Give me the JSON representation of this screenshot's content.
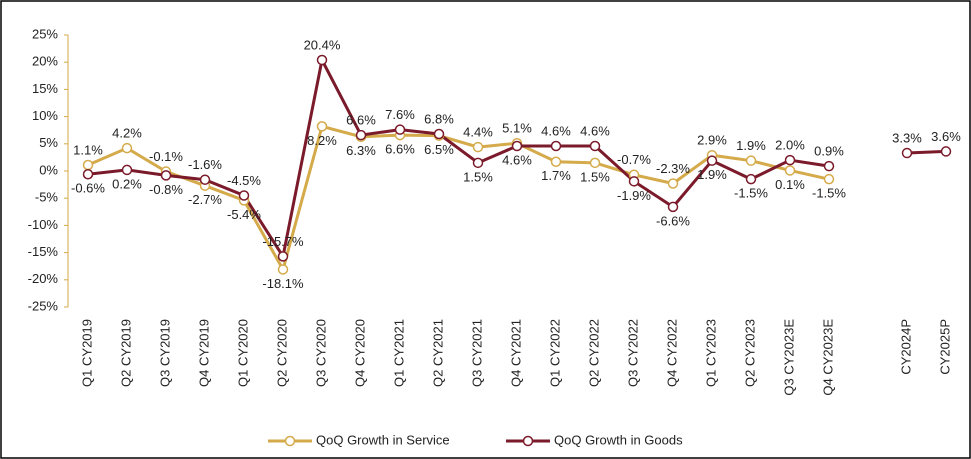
{
  "chart_data": {
    "type": "line",
    "categories": [
      "Q1 CY2019",
      "Q2 CY2019",
      "Q3 CY2019",
      "Q4 CY2019",
      "Q1 CY2020",
      "Q2 CY2020",
      "Q3 CY2020",
      "Q4 CY2020",
      "Q1 CY2021",
      "Q2 CY2021",
      "Q3 CY2021",
      "Q4 CY2021",
      "Q1 CY2022",
      "Q2 CY2022",
      "Q3 CY2022",
      "Q4 CY2022",
      "Q1 CY2023",
      "Q2 CY2023",
      "Q3 CY2023E",
      "Q4 CY2023E",
      null,
      "CY2024P",
      "CY2025P"
    ],
    "series": [
      {
        "name": "QoQ Growth in Service",
        "color": "#d4aa4a",
        "values": [
          1.1,
          4.2,
          -0.1,
          -2.7,
          -5.4,
          -18.1,
          8.2,
          6.3,
          6.6,
          6.5,
          4.4,
          5.1,
          1.7,
          1.5,
          -0.7,
          -2.3,
          2.9,
          1.9,
          0.1,
          -1.5,
          null,
          null,
          null
        ],
        "value_labels": [
          "1.1%",
          "4.2%",
          "-0.1%",
          "-2.7%",
          "-5.4%",
          "-18.1%",
          "8.2%",
          "6.3%",
          "6.6%",
          "6.5%",
          "4.4%",
          "5.1%",
          "1.7%",
          "1.5%",
          "-0.7%",
          "-2.3%",
          "2.9%",
          "1.9%",
          "0.1%",
          "-1.5%",
          null,
          null,
          null
        ]
      },
      {
        "name": "QoQ Growth in Goods",
        "color": "#7a1a2a",
        "values": [
          -0.6,
          0.2,
          -0.8,
          -1.6,
          -4.5,
          -15.7,
          20.4,
          6.6,
          7.6,
          6.8,
          1.5,
          4.6,
          4.6,
          4.6,
          -1.9,
          -6.6,
          1.9,
          -1.5,
          2.0,
          0.9,
          null,
          3.3,
          3.6
        ],
        "value_labels": [
          "-0.6%",
          "0.2%",
          "-0.8%",
          "-1.6%",
          "-4.5%",
          "-15.7%",
          "20.4%",
          "6.6%",
          "7.6%",
          "6.8%",
          "1.5%",
          "4.6%",
          "4.6%",
          "4.6%",
          "-1.9%",
          "-6.6%",
          "1.9%",
          "-1.5%",
          "2.0%",
          "0.9%",
          null,
          "3.3%",
          "3.6%"
        ]
      }
    ],
    "ylim": [
      -25,
      25
    ],
    "yticks": [
      {
        "value": 25,
        "label": "25%"
      },
      {
        "value": 20,
        "label": "20%"
      },
      {
        "value": 15,
        "label": "15%"
      },
      {
        "value": 10,
        "label": "10%"
      },
      {
        "value": 5,
        "label": "5%"
      },
      {
        "value": 0,
        "label": "0%"
      },
      {
        "value": -5,
        "label": "-5%"
      },
      {
        "value": -10,
        "label": "-10%"
      },
      {
        "value": -15,
        "label": "-15%"
      },
      {
        "value": -20,
        "label": "-20%"
      },
      {
        "value": -25,
        "label": "-25%"
      }
    ],
    "legend": "bottom"
  }
}
